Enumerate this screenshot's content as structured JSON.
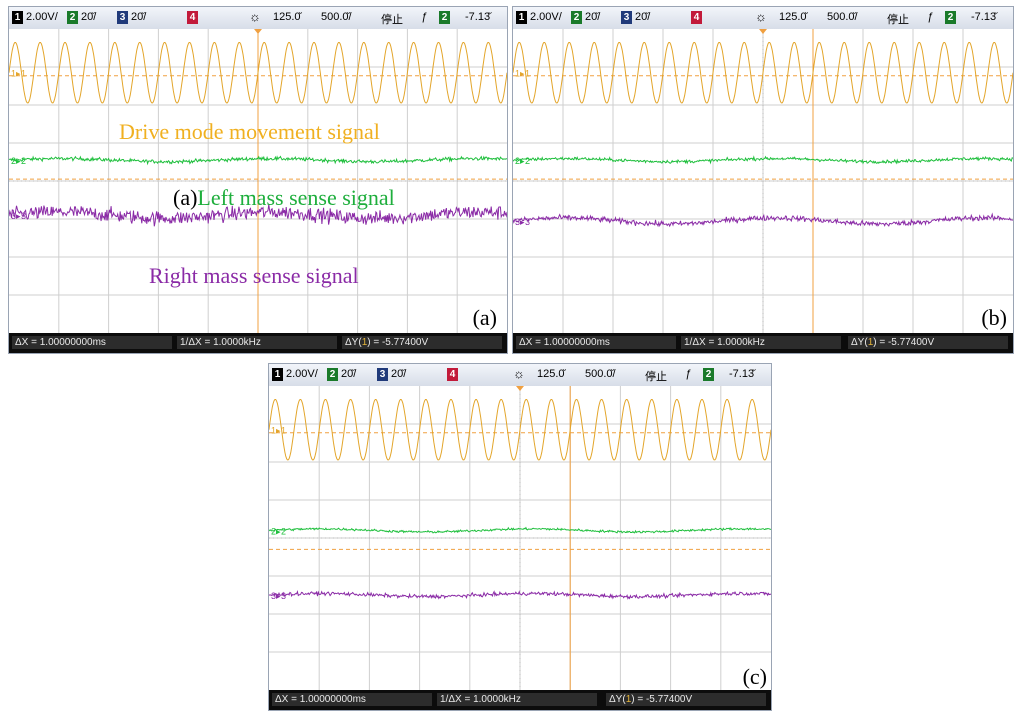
{
  "colors": {
    "ch1": "#e3a52a",
    "ch2": "#1ebf3c",
    "ch3": "#8a2aa6",
    "ch4": "#c21a3a",
    "grid": "#cfcfcf",
    "center": "#f0a040",
    "cursor": "#f0a040"
  },
  "status_bar": {
    "ch1_num": "1",
    "ch1_scale": "2.00V/",
    "ch2_num": "2",
    "ch2_scale": "20̆/",
    "ch3_num": "3",
    "ch3_scale": "20̆/",
    "ch4_num": "4",
    "trigger_icon": "sun-icon",
    "time_offset": "125.0̆",
    "time_scale": "500.0̆/",
    "run_state": "停止",
    "edge_icon": "falling-edge-icon",
    "trig_ch": "2",
    "trig_level": "-7.13̆"
  },
  "measurements": {
    "dx": "ΔX = 1.00000000ms",
    "inv_dx": "1/ΔX = 1.0000kHz",
    "dy_prefix": "ΔY(",
    "dy_ch": "1",
    "dy_suffix": ") = -5.77400V"
  },
  "channel_markers": {
    "ch1": "1",
    "ch2": "2",
    "ch3": "3"
  },
  "panels": {
    "a": {
      "label": "(a)"
    },
    "b": {
      "label": "(b)"
    },
    "c": {
      "label": "(c)"
    }
  },
  "annotations": {
    "drive": "Drive mode movement signal",
    "left_prefix": "(a)",
    "left": "Left mass sense signal",
    "right": "Right mass sense signal"
  },
  "chart_data": [
    {
      "type": "line",
      "panel": "a",
      "x_unit": "ms",
      "time_per_div": 0.5,
      "x_divisions": 10,
      "y_divisions": 8,
      "series": [
        {
          "name": "Drive mode movement signal",
          "channel": 1,
          "waveform": "sine",
          "cycles_on_screen": 20,
          "amplitude_div": 0.8,
          "offset_div": 2.85,
          "noise_div": 0.0
        },
        {
          "name": "Left mass sense signal",
          "channel": 2,
          "waveform": "noise",
          "cycles_on_screen": 0,
          "amplitude_div": 0.0,
          "offset_div": 0.55,
          "noise_div": 0.08
        },
        {
          "name": "Right mass sense signal",
          "channel": 3,
          "waveform": "noise",
          "cycles_on_screen": 0,
          "amplitude_div": 0.0,
          "offset_div": -0.9,
          "noise_div": 0.32
        }
      ],
      "cursor_x_div": 5.0
    },
    {
      "type": "line",
      "panel": "b",
      "x_unit": "ms",
      "time_per_div": 0.5,
      "x_divisions": 10,
      "y_divisions": 8,
      "series": [
        {
          "channel": 1,
          "waveform": "sine",
          "cycles_on_screen": 20,
          "amplitude_div": 0.8,
          "offset_div": 2.85,
          "noise_div": 0.0
        },
        {
          "channel": 2,
          "waveform": "noise",
          "cycles_on_screen": 0,
          "amplitude_div": 0.0,
          "offset_div": 0.55,
          "noise_div": 0.07
        },
        {
          "channel": 3,
          "waveform": "noise",
          "cycles_on_screen": 0,
          "amplitude_div": 0.0,
          "offset_div": -1.05,
          "noise_div": 0.12
        }
      ],
      "cursor_x_div": 6.0
    },
    {
      "type": "line",
      "panel": "c",
      "x_unit": "ms",
      "time_per_div": 0.5,
      "x_divisions": 10,
      "y_divisions": 8,
      "series": [
        {
          "channel": 1,
          "waveform": "sine",
          "cycles_on_screen": 20,
          "amplitude_div": 0.8,
          "offset_div": 2.85,
          "noise_div": 0.0
        },
        {
          "channel": 2,
          "waveform": "noise",
          "cycles_on_screen": 0,
          "amplitude_div": 0.0,
          "offset_div": 0.2,
          "noise_div": 0.05
        },
        {
          "channel": 3,
          "waveform": "noise",
          "cycles_on_screen": 0,
          "amplitude_div": 0.0,
          "offset_div": -1.5,
          "noise_div": 0.08
        }
      ],
      "cursor_x_div": 6.0
    }
  ]
}
